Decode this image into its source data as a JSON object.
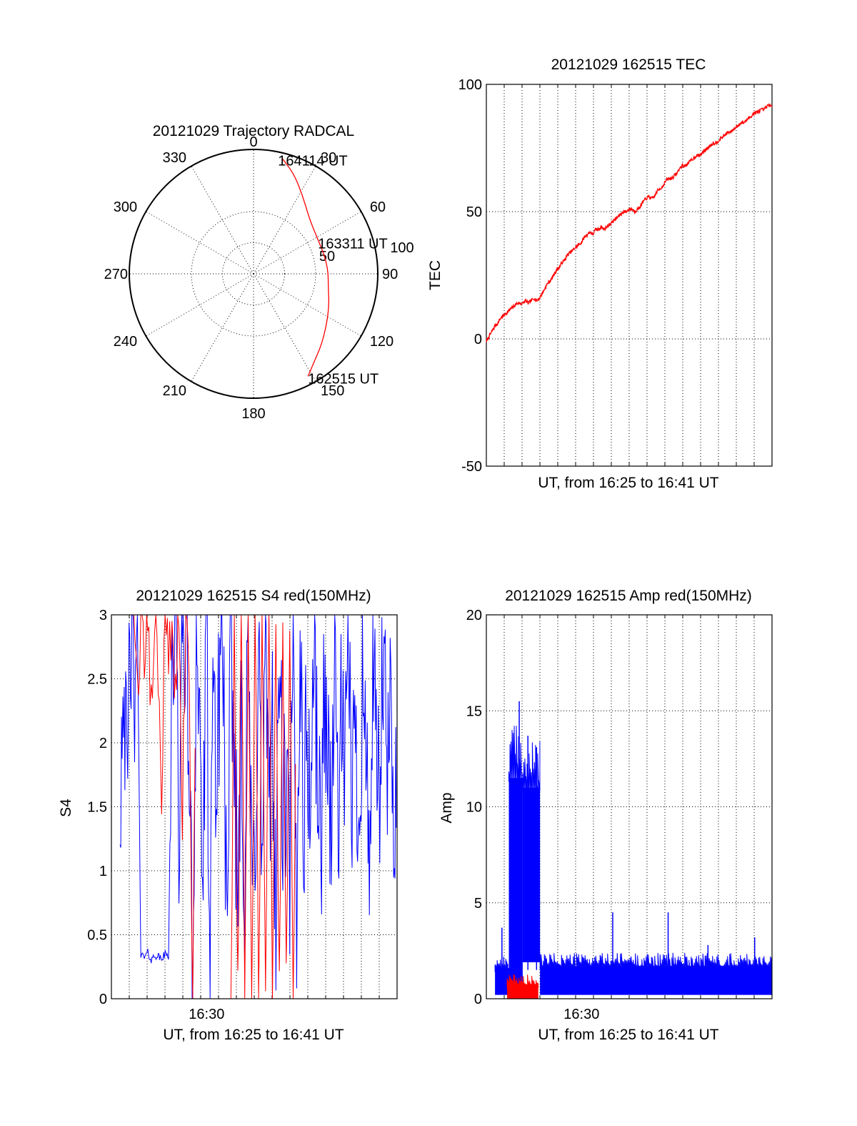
{
  "colors": {
    "red": "#ff0000",
    "blue": "#0000ff",
    "axis": "#000000",
    "background": "#ffffff"
  },
  "chart_data": [
    {
      "id": "polar",
      "type": "polar",
      "title": "20121029 Trajectory RADCAL",
      "angle_labels": [
        "0",
        "30",
        "60",
        "90",
        "120",
        "150",
        "180",
        "210",
        "240",
        "270",
        "300",
        "330"
      ],
      "radial_labels": [
        "50",
        "100"
      ],
      "grid": true,
      "series": [
        {
          "color": "#ff0000",
          "points": [
            {
              "azimuth": 152,
              "elevation": 6
            },
            {
              "azimuth": 145,
              "elevation": 13
            },
            {
              "azimuth": 136,
              "elevation": 19
            },
            {
              "azimuth": 124,
              "elevation": 26
            },
            {
              "azimuth": 112,
              "elevation": 31
            },
            {
              "azimuth": 100,
              "elevation": 35
            },
            {
              "azimuth": 87,
              "elevation": 36
            },
            {
              "azimuth": 75,
              "elevation": 37
            },
            {
              "azimuth": 60,
              "elevation": 37
            },
            {
              "azimuth": 45,
              "elevation": 33
            },
            {
              "azimuth": 32,
              "elevation": 23
            },
            {
              "azimuth": 22,
              "elevation": 12
            },
            {
              "azimuth": 14,
              "elevation": 4
            }
          ]
        }
      ],
      "annotations": [
        {
          "text": "164114 UT",
          "azimuth": 14,
          "elevation": 4
        },
        {
          "text": "163311 UT",
          "azimuth": 78,
          "elevation": 37
        },
        {
          "text": "162515 UT",
          "azimuth": 152,
          "elevation": 6
        }
      ]
    },
    {
      "id": "tec",
      "type": "line",
      "title": "20121029 162515 TEC",
      "xlabel": "UT, from 16:25 to 16:41 UT",
      "ylabel": "TEC",
      "ylim": [
        -50,
        100
      ],
      "yticks": [
        "100",
        "50",
        "0",
        "-50"
      ],
      "xticks": [],
      "grid": true,
      "series": [
        {
          "color": "#ff0000",
          "x": [
            16.25,
            16.5,
            16.75,
            17.0,
            17.25,
            17.5,
            17.75,
            18.0,
            18.25,
            18.5,
            18.75,
            19.0,
            19.25,
            19.5,
            19.75,
            20.0,
            20.25,
            20.5,
            20.75,
            21.0,
            21.25,
            21.5,
            21.75,
            22.0,
            22.25,
            22.5,
            22.75,
            23.0,
            23.25,
            23.5,
            23.75,
            24.0,
            24.25,
            24.5,
            24.75,
            25.0,
            25.25,
            25.5,
            25.75,
            26.0,
            26.25,
            26.5,
            26.75,
            27.0,
            27.25,
            27.5,
            27.75,
            28.0,
            28.25,
            28.5,
            28.75,
            29.0,
            29.25,
            29.5,
            29.75,
            30.0,
            30.25,
            30.5,
            30.75,
            31.0,
            31.25,
            31.5,
            31.75,
            32.0,
            32.25,
            32.5,
            32.75,
            33.0,
            33.25,
            33.5,
            33.75,
            34.0,
            34.25,
            34.5,
            34.75,
            35.0,
            35.25,
            35.5,
            35.75,
            36.0,
            36.25,
            36.5,
            36.75,
            37.0,
            37.25,
            37.5,
            37.75,
            38.0,
            38.25,
            38.5,
            38.75,
            39.0,
            39.25,
            39.5,
            39.75,
            40.0,
            40.25,
            40.5,
            40.75,
            41.0,
            41.25,
            41.5,
            41.75
          ],
          "y": [
            -1,
            1,
            3,
            5,
            6,
            8,
            9,
            10,
            11,
            12,
            13,
            14,
            14,
            14,
            15,
            14,
            15,
            16,
            15,
            16,
            18,
            20,
            22,
            23,
            25,
            27,
            28,
            30,
            31,
            33,
            34,
            35,
            36,
            37,
            38,
            40,
            41,
            42,
            41,
            43,
            43,
            44,
            43,
            44,
            45,
            46,
            47,
            48,
            49,
            50,
            50,
            51,
            51,
            50,
            51,
            52,
            54,
            55,
            56,
            55,
            56,
            58,
            59,
            60,
            62,
            63,
            63,
            64,
            65,
            67,
            68,
            68,
            69,
            70,
            71,
            72,
            72,
            73,
            74,
            75,
            76,
            77,
            77,
            78,
            79,
            80,
            81,
            81,
            82,
            83,
            84,
            85,
            85,
            86,
            87,
            88,
            89,
            89,
            90,
            90,
            91,
            92,
            91
          ]
        }
      ]
    },
    {
      "id": "s4",
      "type": "line",
      "title": "20121029 162515 S4 red(150MHz)",
      "xlabel": "UT, from 16:25 to 16:41 UT",
      "ylabel": "S4",
      "ylim": [
        0,
        3
      ],
      "yticks": [
        "3",
        "2.5",
        "2",
        "1.5",
        "1",
        "0.5",
        "0"
      ],
      "xticks": [
        {
          "label": "16:30",
          "value": 30
        }
      ],
      "grid": true,
      "series": [
        {
          "color": "#0000ff",
          "segments": [
            {
              "x": [
                25.0,
                25.2,
                25.4,
                25.6,
                25.8,
                26.0,
                26.2,
                26.4,
                26.6,
                26.8,
                27.0,
                27.2,
                27.4,
                27.6,
                27.8,
                28.0,
                28.2,
                28.4,
                28.6,
                28.8,
                29.0,
                29.2,
                29.4,
                29.6,
                29.8,
                30.0,
                30.2,
                30.4,
                30.6,
                30.8,
                31.0,
                31.2,
                31.4,
                31.6,
                31.8,
                32.0,
                32.2,
                32.4,
                32.6,
                32.8,
                33.0,
                33.2,
                33.4,
                33.6,
                33.8,
                34.0,
                34.2,
                34.4,
                34.6,
                34.8,
                35.0,
                35.2,
                35.4,
                35.6,
                35.8,
                36.0,
                36.2,
                36.4,
                36.6,
                36.8,
                37.0,
                37.2,
                37.4,
                37.6,
                37.8,
                38.0,
                38.2,
                38.4,
                38.6,
                38.8,
                39.0,
                39.2,
                39.4,
                39.6,
                39.8,
                40.0,
                40.2,
                40.4,
                40.6,
                40.8,
                41.0
              ],
              "y": [
                1.6,
                2.8,
                1.4,
                3.0,
                2.2,
                3.0,
                0.35,
                0.32,
                0.36,
                0.3,
                0.34,
                0.33,
                0.31,
                0.35,
                0.33,
                2.6,
                3.0,
                1.3,
                2.9,
                3.0,
                1.8,
                0.0,
                3.0,
                2.1,
                0.9,
                3.0,
                0.0,
                2.7,
                1.5,
                3.0,
                2.4,
                0.0,
                3.0,
                1.9,
                0.8,
                2.5,
                0.6,
                3.0,
                0.7,
                1.2,
                2.9,
                0.9,
                3.0,
                1.1,
                2.4,
                0.5,
                2.8,
                1.4,
                1.6,
                1.0,
                2.6,
                0.5,
                3.0,
                1.3,
                2.2,
                1.4,
                2.9,
                1.8,
                1.1,
                2.5,
                1.9,
                1.4,
                2.7,
                1.5,
                2.2,
                1.6,
                2.8,
                1.7,
                2.0,
                1.4,
                2.6,
                1.8,
                1.2,
                2.4,
                1.9,
                1.5,
                2.7,
                1.7,
                2.2,
                1.5,
                1.9
              ]
            }
          ]
        },
        {
          "color": "#ff0000",
          "segments": [
            {
              "x": [
                25.8,
                26.0,
                26.2,
                26.4,
                26.6,
                26.8,
                27.0,
                27.2,
                27.4,
                27.6,
                27.8,
                28.0,
                28.2,
                28.4,
                28.6,
                28.8,
                29.0,
                29.2,
                29.4
              ],
              "y": [
                3.0,
                2.4,
                3.0,
                2.6,
                3.0,
                2.2,
                3.0,
                2.5,
                1.7,
                3.0,
                2.6,
                3.0,
                2.3,
                3.0,
                1.5,
                3.0,
                2.5,
                0.0,
                3.0
              ]
            },
            {
              "x": [
                31.4,
                31.6,
                31.8,
                32.0,
                32.2,
                32.4,
                32.6,
                32.8,
                33.0,
                33.2,
                33.4,
                33.6,
                33.8,
                34.0,
                34.2,
                34.4,
                34.6,
                34.8,
                35.0,
                35.2
              ],
              "y": [
                0.0,
                3.0,
                0.0,
                3.0,
                0.0,
                3.0,
                0.0,
                3.0,
                0.0,
                3.0,
                0.0,
                3.0,
                0.0,
                3.0,
                0.0,
                3.0,
                0.0,
                3.0,
                0.0,
                3.0
              ]
            }
          ]
        }
      ]
    },
    {
      "id": "amp",
      "type": "line",
      "title": "20121029 162515 Amp red(150MHz)",
      "xlabel": "UT, from 16:25 to 16:41 UT",
      "ylabel": "Amp",
      "ylim": [
        0,
        20
      ],
      "yticks": [
        "20",
        "15",
        "10",
        "5",
        "0"
      ],
      "xticks": [
        {
          "label": "16:30",
          "value": 30
        }
      ],
      "grid": true,
      "series": [
        {
          "color": "#0000ff",
          "bands": [
            {
              "x": [
                25.0,
                25.8
              ],
              "low": 0.2,
              "high": 1.6
            },
            {
              "x": [
                25.8,
                26.6
              ],
              "low": 0.3,
              "high": 11.5
            },
            {
              "x": [
                26.6,
                27.6
              ],
              "low": 1.9,
              "high": 11.0
            },
            {
              "x": [
                27.6,
                41.0
              ],
              "low": 0.2,
              "high": 1.7
            }
          ],
          "peaks": [
            {
              "x": 25.4,
              "y": 3.7
            },
            {
              "x": 26.4,
              "y": 15.5
            },
            {
              "x": 26.9,
              "y": 13.7
            },
            {
              "x": 27.4,
              "y": 13.1
            },
            {
              "x": 31.8,
              "y": 4.5
            },
            {
              "x": 35.0,
              "y": 4.5
            },
            {
              "x": 37.3,
              "y": 2.8
            },
            {
              "x": 40.0,
              "y": 3.2
            }
          ]
        },
        {
          "color": "#ff0000",
          "bands": [
            {
              "x": [
                25.7,
                27.5
              ],
              "low": 0.0,
              "high": 0.75
            }
          ]
        }
      ]
    }
  ]
}
